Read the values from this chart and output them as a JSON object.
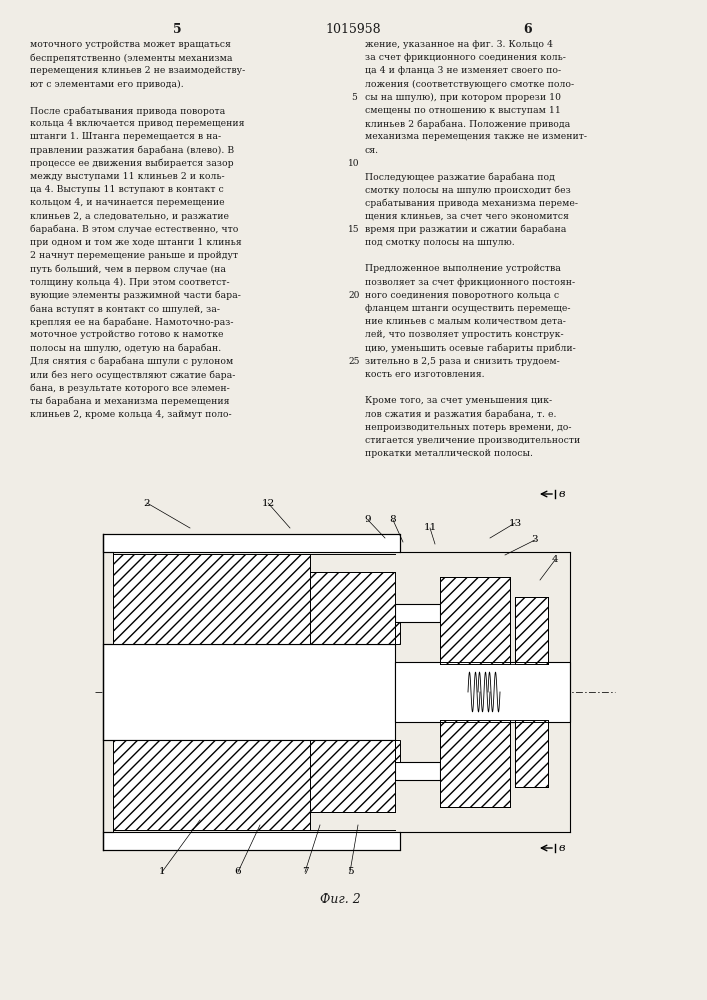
{
  "page_width": 7.07,
  "page_height": 10.0,
  "bg_color": "#f0ede6",
  "text_color": "#1a1a1a",
  "col1_text": [
    "моточного устройства может вращаться",
    "беспрепятственно (элементы механизма",
    "перемещения клиньев 2 не взаимодейству-",
    "ют с элементами его привода).",
    "",
    "После срабатывания привода поворота",
    "кольца 4 включается привод перемещения",
    "штанги 1. Штанга перемещается в на-",
    "правлении разжатия барабана (влево). В",
    "процессе ее движения выбирается зазор",
    "между выступами 11 клиньев 2 и коль-",
    "ца 4. Выступы 11 вступают в контакт с",
    "кольцом 4, и начинается перемещение",
    "клиньев 2, а следовательно, и разжатие",
    "барабана. В этом случае естественно, что",
    "при одном и том же ходе штанги 1 клинья",
    "2 начнут перемещение раньше и пройдут",
    "путь больший, чем в первом случае (на",
    "толщину кольца 4). При этом соответст-",
    "вующие элементы разжимной части бара-",
    "бана вступят в контакт со шпулей, за-",
    "крепляя ее на барабане. Намоточно-раз-",
    "моточное устройство готово к намотке",
    "полосы на шпулю, одетую на барабан.",
    "Для снятия с барабана шпули с рулоном",
    "или без него осуществляют сжатие бара-",
    "бана, в результате которого все элемен-",
    "ты барабана и механизма перемещения",
    "клиньев 2, кроме кольца 4, займут поло-"
  ],
  "col2_text": [
    "жение, указанное на фиг. 3. Кольцо 4",
    "за счет фрикционного соединения коль-",
    "ца 4 и фланца 3 не изменяет своего по-",
    "ложения (соответствующего смотке поло-",
    "сы на шпулю), при котором прорези 10",
    "смещены по отношению к выступам 11",
    "клиньев 2 барабана. Положение привода",
    "механизма перемещения также не изменит-",
    "ся.",
    "",
    "Последующее разжатие барабана под",
    "смотку полосы на шпулю происходит без",
    "срабатывания привода механизма переме-",
    "щения клиньев, за счет чего экономится",
    "время при разжатии и сжатии барабана",
    "под смотку полосы на шпулю.",
    "",
    "Предложенное выполнение устройства",
    "позволяет за счет фрикционного постоян-",
    "ного соединения поворотного кольца с",
    "фланцем штанги осуществить перемеще-",
    "ние клиньев с малым количеством дета-",
    "лей, что позволяет упростить конструк-",
    "цию, уменьшить осевые габариты прибли-",
    "зительно в 2,5 раза и снизить трудоем-",
    "кость его изготовления.",
    "",
    "Кроме того, за счет уменьшения цик-",
    "лов сжатия и разжатия барабана, т. е.",
    "непроизводительных потерь времени, до-",
    "стигается увеличение производительности",
    "прокатки металлической полосы."
  ],
  "line_numbers": [
    "5",
    "10",
    "15",
    "20",
    "25"
  ],
  "line_number_positions": [
    4,
    9,
    14,
    19,
    24
  ]
}
